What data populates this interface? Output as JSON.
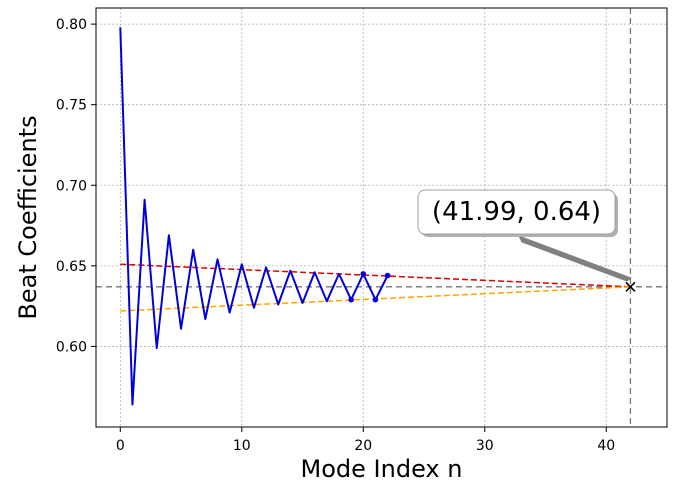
{
  "chart_data": {
    "type": "line",
    "xlabel": "Mode Index n",
    "ylabel": "Beat Coefficients",
    "xlim": [
      -2,
      45
    ],
    "ylim": [
      0.55,
      0.81
    ],
    "xticks": [
      0,
      10,
      20,
      30,
      40
    ],
    "yticks": [
      0.6,
      0.65,
      0.7,
      0.75,
      0.8
    ],
    "grid": true,
    "series": [
      {
        "color": "#0000dd",
        "x": [
          0,
          1,
          2,
          3,
          4,
          5,
          6,
          7,
          8,
          9,
          10,
          11,
          12,
          13,
          14,
          15,
          16,
          17,
          18,
          19,
          20,
          21,
          22
        ],
        "y": [
          0.798,
          0.564,
          0.691,
          0.599,
          0.669,
          0.611,
          0.66,
          0.617,
          0.654,
          0.621,
          0.651,
          0.624,
          0.649,
          0.626,
          0.647,
          0.627,
          0.646,
          0.628,
          0.645,
          0.629,
          0.645,
          0.629,
          0.644
        ]
      }
    ],
    "markers": {
      "color": "#0000dd",
      "points": [
        [
          19,
          0.629
        ],
        [
          20,
          0.645
        ],
        [
          21,
          0.629
        ],
        [
          22,
          0.644
        ]
      ]
    },
    "trend_lines": [
      {
        "color": "#e00000",
        "x": [
          0,
          41.99
        ],
        "y": [
          0.651,
          0.637
        ]
      },
      {
        "color": "#ffa500",
        "x": [
          0,
          41.99
        ],
        "y": [
          0.622,
          0.637
        ]
      }
    ],
    "reference_lines": {
      "color": "#777777",
      "x": 41.99,
      "y": 0.637
    },
    "limit_point": {
      "x": 41.99,
      "y": 0.637,
      "marker": "x"
    },
    "annotation": {
      "text": "(41.99, 0.64)",
      "anchor": [
        41.99,
        0.637
      ]
    }
  }
}
